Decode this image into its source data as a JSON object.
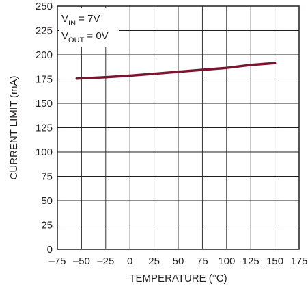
{
  "chart_data": {
    "type": "line",
    "title": "",
    "xlabel": "TEMPERATURE (°C)",
    "ylabel": "CURRENT LIMIT (mA)",
    "xlim": [
      -75,
      175
    ],
    "ylim": [
      0,
      250
    ],
    "xticks": [
      -75,
      -50,
      -25,
      0,
      25,
      50,
      75,
      100,
      125,
      150,
      175
    ],
    "yticks": [
      0,
      25,
      50,
      75,
      100,
      125,
      150,
      175,
      200,
      225,
      250
    ],
    "xtick_labels": [
      "–75",
      "–50",
      "–25",
      "0",
      "25",
      "50",
      "75",
      "100",
      "125",
      "150",
      "175"
    ],
    "ytick_labels": [
      "0",
      "25",
      "50",
      "75",
      "100",
      "125",
      "150",
      "175",
      "200",
      "225",
      "250"
    ],
    "grid": true,
    "annotations": [
      {
        "main": "V",
        "sub": "IN",
        "rest": " = 7V"
      },
      {
        "main": "V",
        "sub": "OUT",
        "rest": " = 0V"
      }
    ],
    "series": [
      {
        "x": [
          -55,
          -25,
          0,
          25,
          50,
          75,
          100,
          125,
          150
        ],
        "y": [
          175.5,
          177,
          178.5,
          180.5,
          182.5,
          184.5,
          186.5,
          189.5,
          191.5
        ],
        "color": "#7a1530"
      }
    ]
  }
}
